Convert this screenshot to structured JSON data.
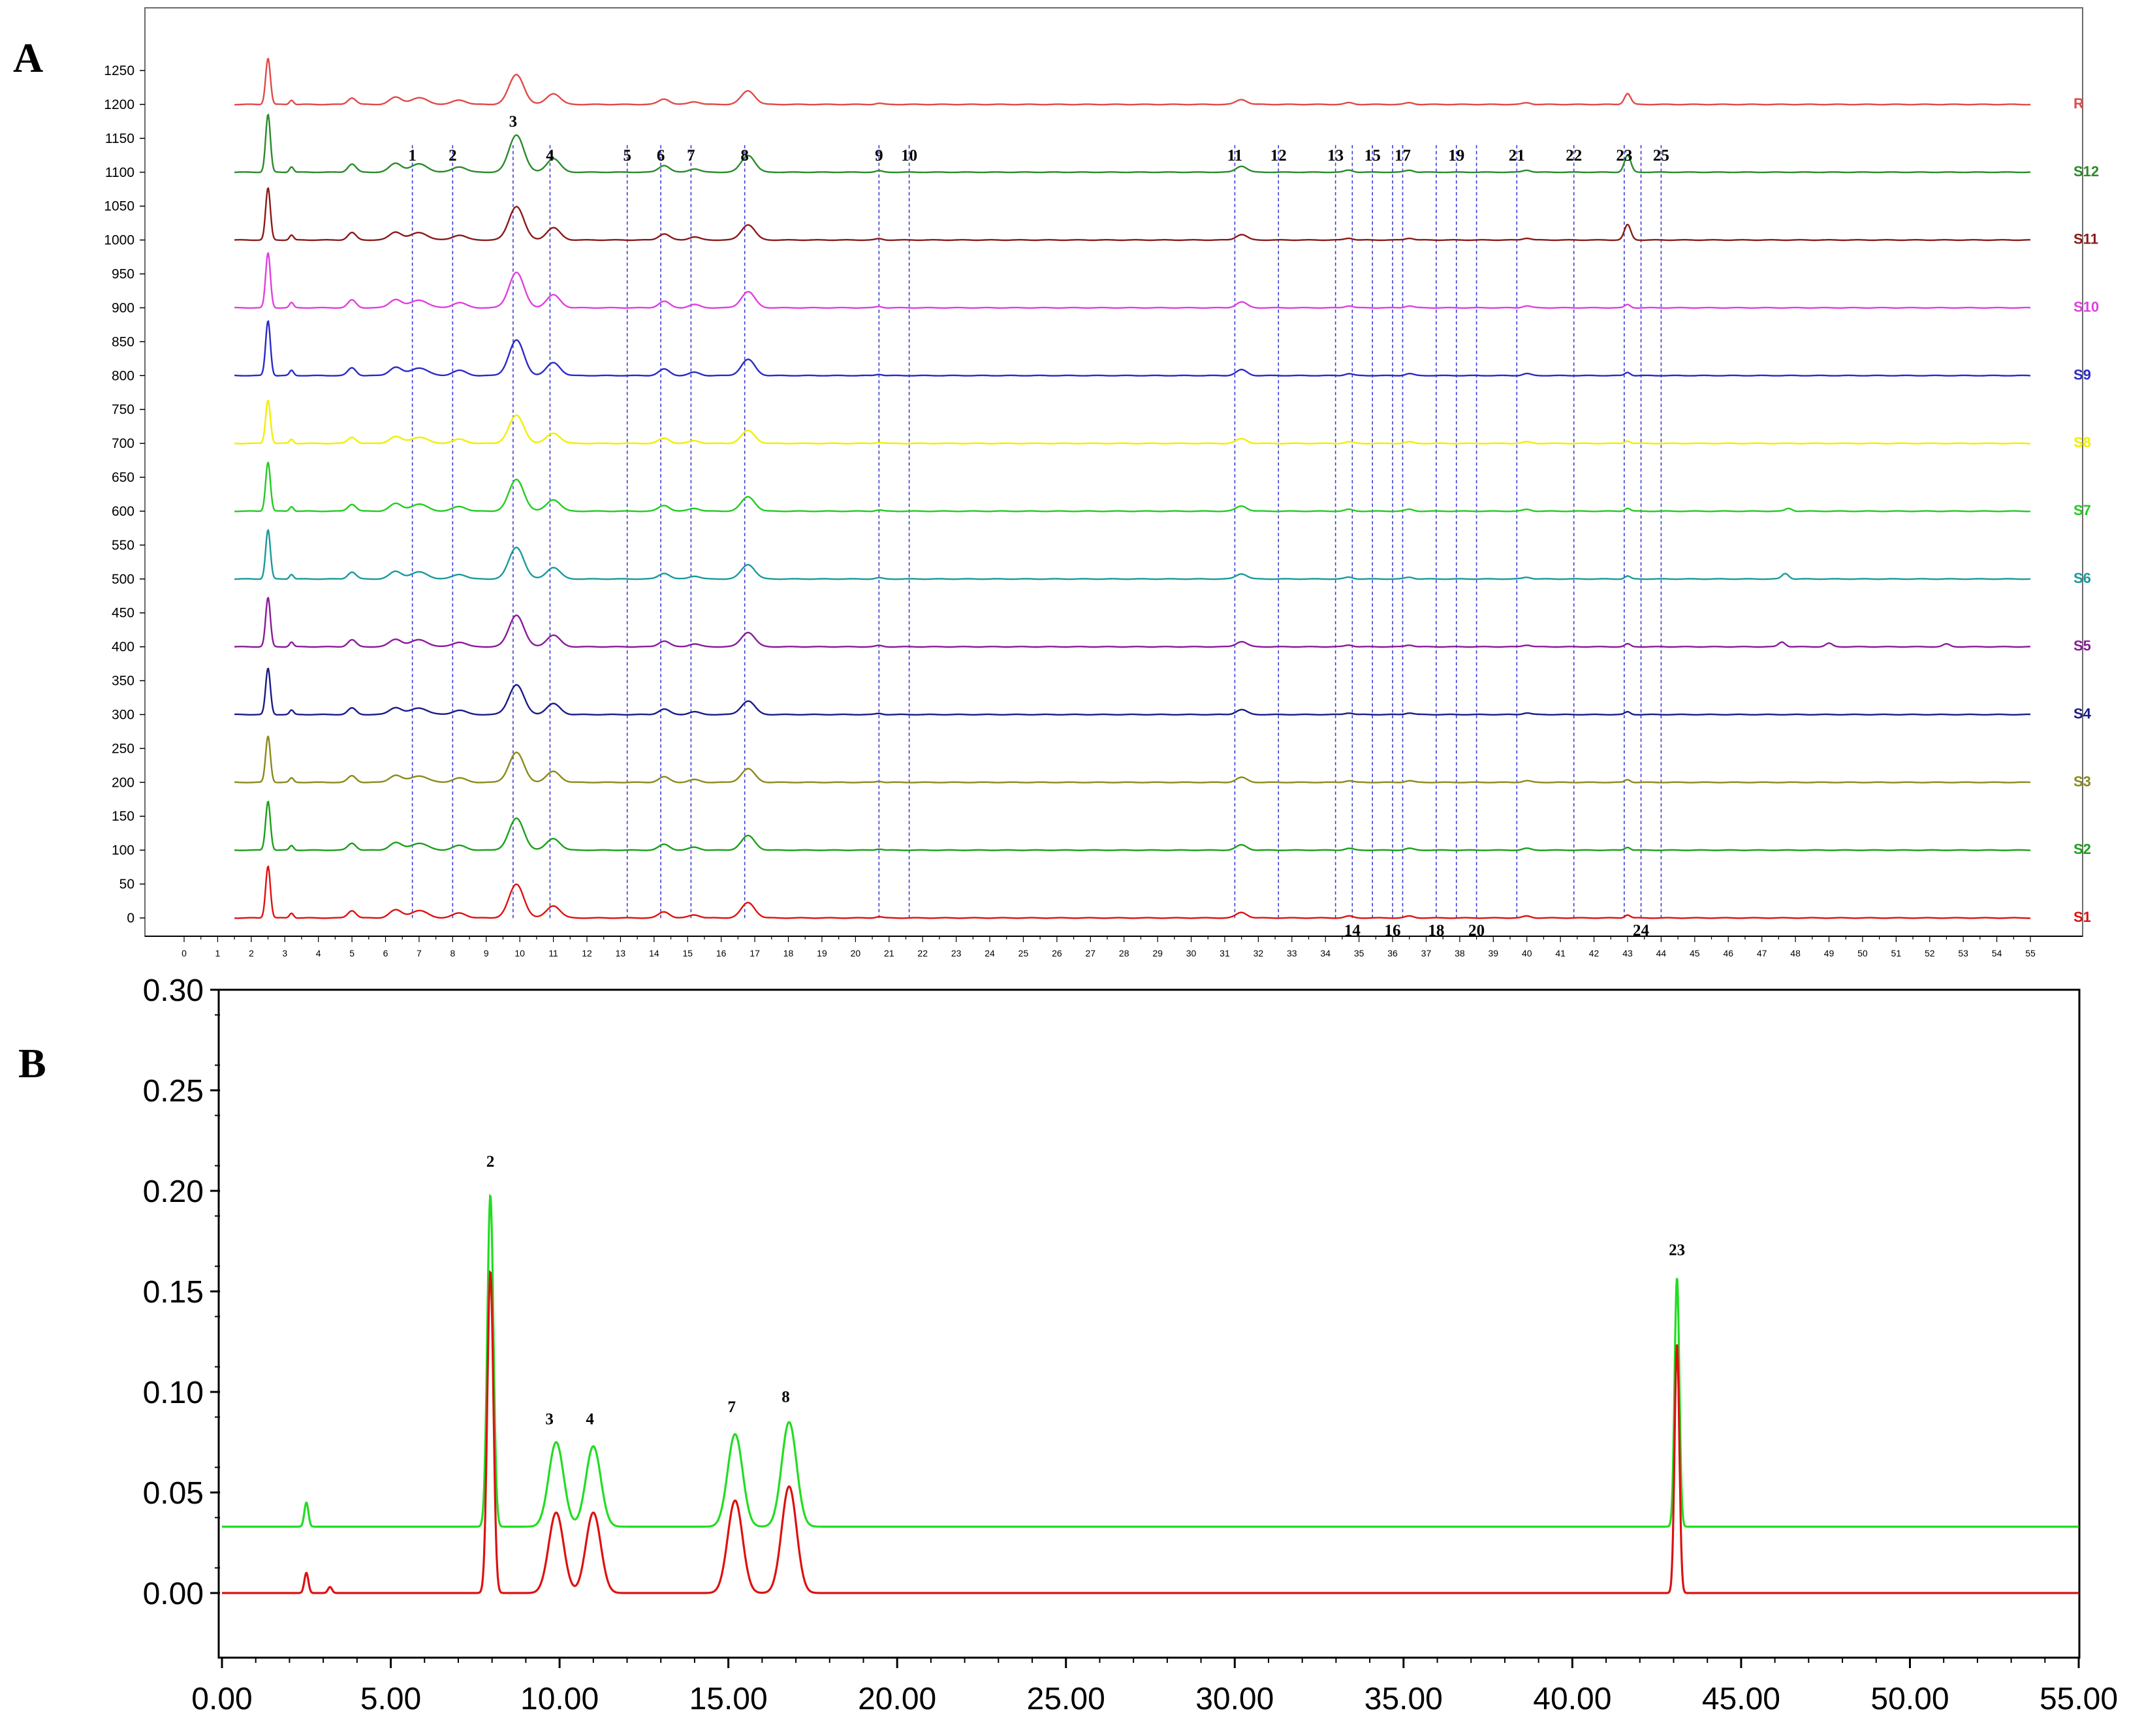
{
  "chart_data": [
    {
      "panel": "A",
      "type": "line",
      "xlim": [
        0,
        55
      ],
      "ylim": [
        -20,
        1290
      ],
      "x_ticks": [
        0,
        1,
        2,
        3,
        4,
        5,
        6,
        7,
        8,
        9,
        10,
        11,
        12,
        13,
        14,
        15,
        16,
        17,
        18,
        19,
        20,
        21,
        22,
        23,
        24,
        25,
        26,
        27,
        28,
        29,
        30,
        31,
        32,
        33,
        34,
        35,
        36,
        37,
        38,
        39,
        40,
        41,
        42,
        43,
        44,
        45,
        46,
        47,
        48,
        49,
        50,
        51,
        52,
        53,
        54,
        55
      ],
      "y_ticks": [
        0,
        50,
        100,
        150,
        200,
        250,
        300,
        350,
        400,
        450,
        500,
        550,
        600,
        650,
        700,
        750,
        800,
        850,
        900,
        950,
        1000,
        1050,
        1100,
        1150,
        1200,
        1250
      ],
      "series": [
        {
          "name": "R",
          "offset": 1200,
          "color": "#e04a4a",
          "scale": 0.8,
          "extra": [
            [
              43.0,
              12
            ]
          ]
        },
        {
          "name": "S12",
          "offset": 1100,
          "color": "#2a8a2a",
          "scale": 1.0,
          "extra": [
            [
              43.0,
              20
            ]
          ]
        },
        {
          "name": "S11",
          "offset": 1000,
          "color": "#8a1a1a",
          "scale": 0.9,
          "extra": [
            [
              43.0,
              18
            ]
          ]
        },
        {
          "name": "S10",
          "offset": 900,
          "color": "#e040e0",
          "scale": 0.95,
          "extra": []
        },
        {
          "name": "S9",
          "offset": 800,
          "color": "#2a2ac8",
          "scale": 0.95,
          "extra": []
        },
        {
          "name": "S8",
          "offset": 700,
          "color": "#f0f000",
          "scale": 0.75,
          "extra": []
        },
        {
          "name": "S7",
          "offset": 600,
          "color": "#22cc22",
          "scale": 0.85,
          "extra": [
            [
              47.8,
              4
            ]
          ]
        },
        {
          "name": "S6",
          "offset": 500,
          "color": "#1a9a9a",
          "scale": 0.85,
          "extra": [
            [
              47.7,
              8
            ]
          ]
        },
        {
          "name": "S5",
          "offset": 400,
          "color": "#8a1a9a",
          "scale": 0.85,
          "extra": [
            [
              47.6,
              7
            ],
            [
              49.0,
              5
            ],
            [
              52.5,
              4
            ]
          ]
        },
        {
          "name": "S4",
          "offset": 300,
          "color": "#1a1a88",
          "scale": 0.8,
          "extra": []
        },
        {
          "name": "S3",
          "offset": 200,
          "color": "#8a8a1a",
          "scale": 0.8,
          "extra": []
        },
        {
          "name": "S2",
          "offset": 100,
          "color": "#1aa01a",
          "scale": 0.85,
          "extra": []
        },
        {
          "name": "S1",
          "offset": 0,
          "color": "#e01010",
          "scale": 0.9,
          "extra": []
        }
      ],
      "profile": [
        [
          2.5,
          85,
          0.07
        ],
        [
          3.2,
          8,
          0.06
        ],
        [
          5.0,
          12,
          0.12
        ],
        [
          6.3,
          13,
          0.18
        ],
        [
          7.0,
          12,
          0.25
        ],
        [
          8.2,
          8,
          0.2
        ],
        [
          9.9,
          55,
          0.22
        ],
        [
          11.0,
          20,
          0.2
        ],
        [
          14.3,
          10,
          0.16
        ],
        [
          15.2,
          5,
          0.16
        ],
        [
          16.8,
          25,
          0.2
        ],
        [
          20.7,
          2,
          0.1
        ],
        [
          31.5,
          9,
          0.16
        ],
        [
          34.7,
          3,
          0.12
        ],
        [
          36.5,
          3,
          0.12
        ],
        [
          40.0,
          3,
          0.12
        ],
        [
          43.0,
          5,
          0.08
        ]
      ],
      "peak_labels": [
        {
          "label": "1",
          "x": 6.8
        },
        {
          "label": "2",
          "x": 8.0
        },
        {
          "label": "3",
          "x": 9.8
        },
        {
          "label": "4",
          "x": 10.9
        },
        {
          "label": "5",
          "x": 13.2
        },
        {
          "label": "6",
          "x": 14.2
        },
        {
          "label": "7",
          "x": 15.1
        },
        {
          "label": "8",
          "x": 16.7
        },
        {
          "label": "9",
          "x": 20.7
        },
        {
          "label": "10",
          "x": 21.6
        },
        {
          "label": "11",
          "x": 31.3
        },
        {
          "label": "12",
          "x": 32.6
        },
        {
          "label": "13",
          "x": 34.3
        },
        {
          "label": "14",
          "x": 34.8
        },
        {
          "label": "15",
          "x": 35.4
        },
        {
          "label": "16",
          "x": 36.0
        },
        {
          "label": "17",
          "x": 36.3
        },
        {
          "label": "18",
          "x": 37.3
        },
        {
          "label": "19",
          "x": 37.9
        },
        {
          "label": "20",
          "x": 38.5
        },
        {
          "label": "21",
          "x": 39.7
        },
        {
          "label": "22",
          "x": 41.4
        },
        {
          "label": "23",
          "x": 42.9
        },
        {
          "label": "24",
          "x": 43.4
        },
        {
          "label": "25",
          "x": 44.0
        }
      ]
    },
    {
      "panel": "B",
      "type": "line",
      "xlim": [
        0,
        55
      ],
      "ylim": [
        -0.03,
        0.3
      ],
      "x_ticks": [
        0,
        5,
        10,
        15,
        20,
        25,
        30,
        35,
        40,
        45,
        50,
        55
      ],
      "x_tick_labels": [
        "0.00",
        "5.00",
        "10.00",
        "15.00",
        "20.00",
        "25.00",
        "30.00",
        "35.00",
        "40.00",
        "45.00",
        "50.00",
        "55.00"
      ],
      "y_ticks": [
        0.0,
        0.05,
        0.1,
        0.15,
        0.2,
        0.25,
        0.3
      ],
      "y_tick_labels": [
        "0.00",
        "0.05",
        "0.10",
        "0.15",
        "0.20",
        "0.25",
        "0.30"
      ],
      "series": [
        {
          "name": "",
          "color": "#22dd22",
          "baseline": 0.033,
          "peaks": [
            [
              2.5,
              0.012,
              0.06
            ],
            [
              7.95,
              0.165,
              0.09
            ],
            [
              9.9,
              0.042,
              0.22
            ],
            [
              11.0,
              0.04,
              0.22
            ],
            [
              15.2,
              0.046,
              0.22
            ],
            [
              16.8,
              0.052,
              0.22
            ],
            [
              43.1,
              0.124,
              0.07
            ]
          ]
        },
        {
          "name": "",
          "color": "#dd1111",
          "baseline": 0.0,
          "peaks": [
            [
              2.5,
              0.01,
              0.06
            ],
            [
              3.2,
              0.003,
              0.06
            ],
            [
              7.95,
              0.16,
              0.09
            ],
            [
              9.9,
              0.04,
              0.22
            ],
            [
              11.0,
              0.04,
              0.22
            ],
            [
              15.2,
              0.046,
              0.22
            ],
            [
              16.8,
              0.053,
              0.22
            ],
            [
              43.1,
              0.124,
              0.07
            ]
          ]
        }
      ],
      "peak_labels": [
        {
          "label": "2",
          "x": 7.95,
          "y": 0.212
        },
        {
          "label": "3",
          "x": 9.7,
          "y": 0.084
        },
        {
          "label": "4",
          "x": 10.9,
          "y": 0.084
        },
        {
          "label": "7",
          "x": 15.1,
          "y": 0.09
        },
        {
          "label": "8",
          "x": 16.7,
          "y": 0.095
        },
        {
          "label": "23",
          "x": 43.1,
          "y": 0.168
        }
      ]
    }
  ],
  "panels": {
    "a": "A",
    "b": "B"
  }
}
